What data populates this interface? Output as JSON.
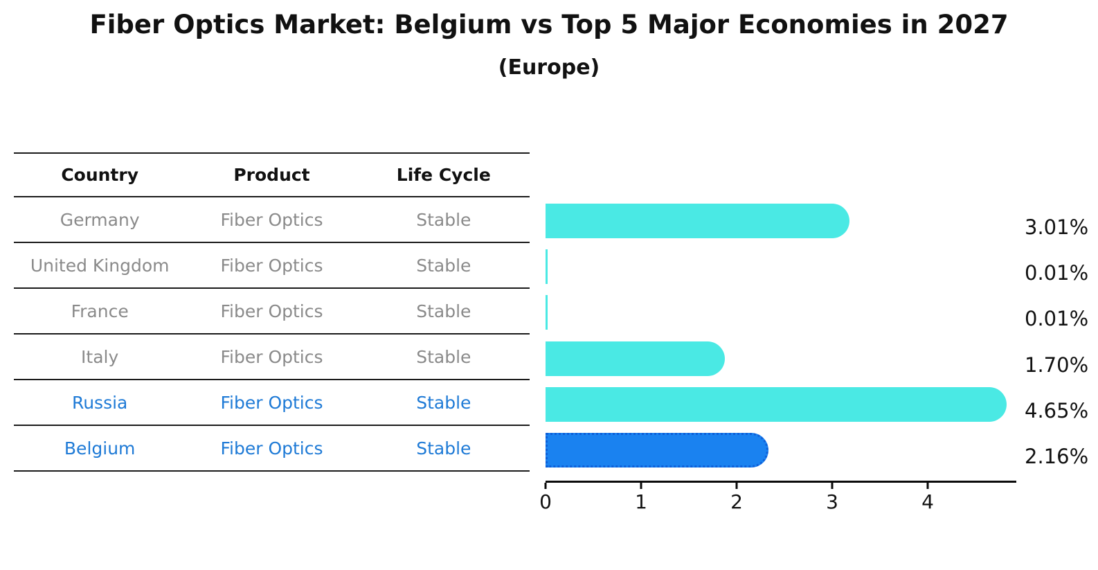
{
  "title": "Fiber Optics Market: Belgium vs Top 5 Major Economies in 2027",
  "subtitle": "(Europe)",
  "table": {
    "headers": [
      "Country",
      "Product",
      "Life Cycle"
    ],
    "rows": [
      {
        "country": "Germany",
        "product": "Fiber Optics",
        "life_cycle": "Stable",
        "highlighted": false
      },
      {
        "country": "United Kingdom",
        "product": "Fiber Optics",
        "life_cycle": "Stable",
        "highlighted": false
      },
      {
        "country": "France",
        "product": "Fiber Optics",
        "life_cycle": "Stable",
        "highlighted": false
      },
      {
        "country": "Italy",
        "product": "Fiber Optics",
        "life_cycle": "Stable",
        "highlighted": false
      },
      {
        "country": "Russia",
        "product": "Fiber Optics",
        "life_cycle": "Stable",
        "highlighted": true
      }
    ],
    "last_row": {
      "country": "Belgium",
      "product": "Fiber Optics",
      "life_cycle": "Stable"
    }
  },
  "chart_data": {
    "type": "bar",
    "orientation": "horizontal",
    "title": "Fiber Optics Market: Belgium vs Top 5 Major Economies in 2027 (Europe)",
    "categories": [
      "Germany",
      "United Kingdom",
      "France",
      "Italy",
      "Russia",
      "Belgium"
    ],
    "values": [
      3.01,
      0.01,
      0.01,
      1.7,
      4.65,
      2.16
    ],
    "value_labels": [
      "3.01%",
      "0.01%",
      "0.01%",
      "1.70%",
      "4.65%",
      "2.16%"
    ],
    "x_ticks": [
      0,
      1,
      2,
      3,
      4
    ],
    "xlim": [
      0,
      4.85
    ],
    "grid": false,
    "legend": "none",
    "highlight_index": 5,
    "colors": {
      "bar": "#4AE9E4",
      "highlight_bar": "#1A82F0",
      "highlight_bar_border": "#0E5FD8",
      "highlight_text": "#1E7AD6",
      "table_text": "#8A8A8A",
      "text": "#111111"
    }
  }
}
